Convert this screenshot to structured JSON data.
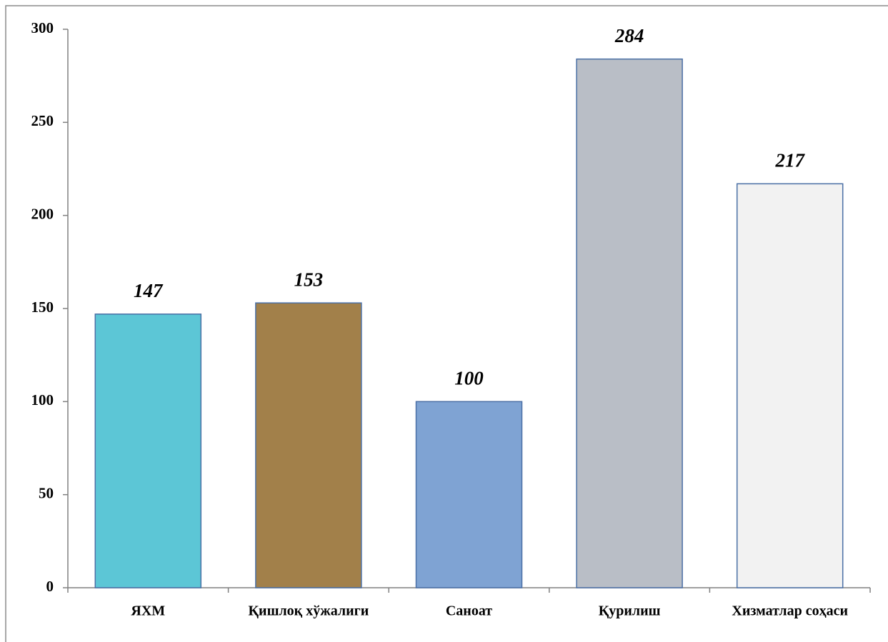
{
  "chart_data": {
    "type": "bar",
    "categories": [
      "ЯХМ",
      "Қишлоқ хўжалиги",
      "Саноат",
      "Қурилиш",
      "Хизматлар соҳаси"
    ],
    "values": [
      147,
      153,
      100,
      284,
      217
    ],
    "colors": [
      "#5cc6d6",
      "#a2804a",
      "#7fa3d3",
      "#b9bec6",
      "#f2f2f2"
    ],
    "ylim": [
      0,
      300
    ],
    "yticks": [
      0,
      50,
      100,
      150,
      200,
      250,
      300
    ],
    "grid": false
  }
}
